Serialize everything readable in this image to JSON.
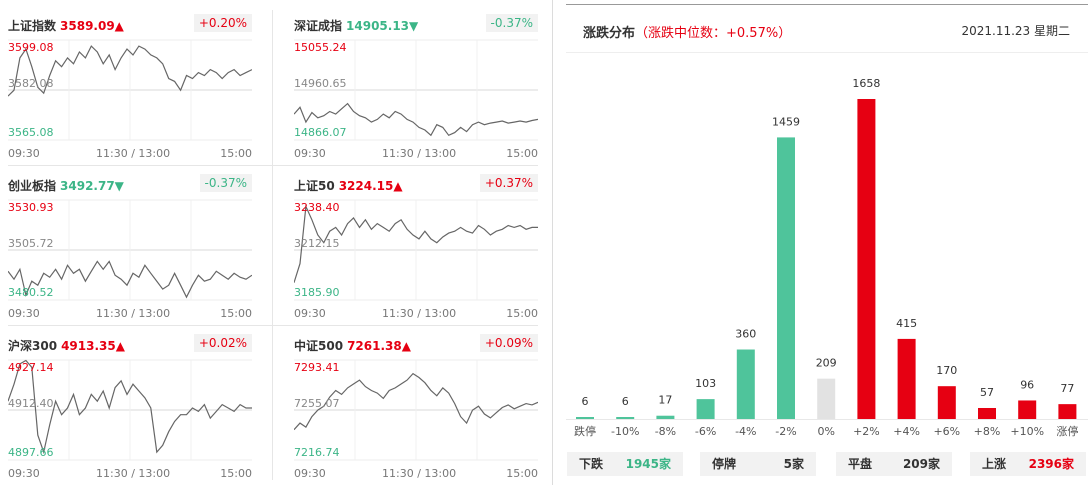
{
  "indices": [
    {
      "name": "上证指数",
      "value": "3589.09",
      "arrow": "▲",
      "change": "+0.20%",
      "trend": "up",
      "high": "3599.08",
      "mid": "3582.08",
      "low": "3565.08",
      "times": [
        "09:30",
        "11:30 / 13:00",
        "15:00"
      ],
      "prev_close": 3582.08,
      "chart_data": {
        "type": "line",
        "ylim": [
          3565.08,
          3599.08
        ],
        "values": [
          3580,
          3582,
          3593,
          3596,
          3590,
          3583,
          3581,
          3587,
          3592,
          3590,
          3593,
          3591,
          3595,
          3593,
          3597,
          3595,
          3591,
          3594,
          3589,
          3593,
          3596,
          3594,
          3597,
          3596,
          3594,
          3593,
          3591,
          3586,
          3585,
          3582,
          3587,
          3586,
          3588,
          3587,
          3589,
          3588,
          3586,
          3588,
          3589,
          3587,
          3588,
          3589
        ]
      }
    },
    {
      "name": "深证成指",
      "value": "14905.13",
      "arrow": "▼",
      "change": "-0.37%",
      "trend": "down",
      "high": "15055.24",
      "mid": "14960.65",
      "low": "14866.07",
      "times": [
        "09:30",
        "11:30 / 13:00",
        "15:00"
      ],
      "prev_close": 14960.65,
      "chart_data": {
        "type": "line",
        "ylim": [
          14866.07,
          15055.24
        ],
        "values": [
          14915,
          14928,
          14900,
          14918,
          14908,
          14912,
          14920,
          14915,
          14925,
          14935,
          14920,
          14912,
          14908,
          14900,
          14905,
          14915,
          14908,
          14920,
          14915,
          14905,
          14900,
          14890,
          14885,
          14875,
          14895,
          14890,
          14875,
          14880,
          14890,
          14882,
          14895,
          14900,
          14895,
          14898,
          14900,
          14902,
          14898,
          14900,
          14902,
          14900,
          14903,
          14905
        ]
      }
    },
    {
      "name": "创业板指",
      "value": "3492.77",
      "arrow": "▼",
      "change": "-0.37%",
      "trend": "down",
      "high": "3530.93",
      "mid": "3505.72",
      "low": "3480.52",
      "times": [
        "09:30",
        "11:30 / 13:00",
        "15:00"
      ],
      "prev_close": 3505.72,
      "chart_data": {
        "type": "line",
        "ylim": [
          3480.52,
          3530.93
        ],
        "values": [
          3495,
          3491,
          3496,
          3483,
          3490,
          3488,
          3494,
          3492,
          3496,
          3491,
          3498,
          3494,
          3496,
          3490,
          3495,
          3500,
          3496,
          3500,
          3493,
          3491,
          3488,
          3494,
          3492,
          3498,
          3494,
          3490,
          3486,
          3488,
          3494,
          3488,
          3482,
          3488,
          3493,
          3490,
          3491,
          3495,
          3493,
          3491,
          3494,
          3492,
          3491,
          3493
        ]
      }
    },
    {
      "name": "上证50",
      "value": "3224.15",
      "arrow": "▲",
      "change": "+0.37%",
      "trend": "up",
      "high": "3238.40",
      "mid": "3212.15",
      "low": "3185.90",
      "times": [
        "09:30",
        "11:30 / 13:00",
        "15:00"
      ],
      "prev_close": 3212.15,
      "chart_data": {
        "type": "line",
        "ylim": [
          3185.9,
          3238.4
        ],
        "values": [
          3195,
          3205,
          3235,
          3228,
          3220,
          3216,
          3222,
          3224,
          3220,
          3226,
          3229,
          3224,
          3228,
          3223,
          3226,
          3224,
          3222,
          3226,
          3228,
          3223,
          3220,
          3218,
          3222,
          3218,
          3216,
          3219,
          3221,
          3222,
          3224,
          3222,
          3221,
          3225,
          3223,
          3220,
          3222,
          3223,
          3225,
          3224,
          3225,
          3223,
          3224,
          3224
        ]
      }
    },
    {
      "name": "沪深300",
      "value": "4913.35",
      "arrow": "▲",
      "change": "+0.02%",
      "trend": "up",
      "high": "4927.14",
      "mid": "4912.40",
      "low": "4897.66",
      "times": [
        "09:30",
        "11:30 / 13:00",
        "15:00"
      ],
      "prev_close": 4912.4,
      "chart_data": {
        "type": "line",
        "ylim": [
          4897.66,
          4927.14
        ],
        "values": [
          4915,
          4920,
          4926,
          4927,
          4925,
          4905,
          4900,
          4908,
          4915,
          4911,
          4913,
          4917,
          4911,
          4913,
          4917,
          4915,
          4918,
          4913,
          4919,
          4921,
          4917,
          4920,
          4918,
          4916,
          4913,
          4900,
          4902,
          4906,
          4909,
          4911,
          4911,
          4913,
          4912,
          4914,
          4910,
          4912,
          4914,
          4913,
          4912,
          4914,
          4913,
          4913
        ]
      }
    },
    {
      "name": "中证500",
      "value": "7261.38",
      "arrow": "▲",
      "change": "+0.09%",
      "trend": "up",
      "high": "7293.41",
      "mid": "7255.07",
      "low": "7216.74",
      "times": [
        "09:30",
        "11:30 / 13:00",
        "15:00"
      ],
      "prev_close": 7255.07,
      "chart_data": {
        "type": "line",
        "ylim": [
          7216.74,
          7293.41
        ],
        "values": [
          7240,
          7245,
          7242,
          7250,
          7255,
          7258,
          7265,
          7270,
          7267,
          7272,
          7275,
          7278,
          7273,
          7270,
          7268,
          7264,
          7270,
          7272,
          7275,
          7278,
          7283,
          7280,
          7276,
          7270,
          7266,
          7272,
          7268,
          7260,
          7250,
          7245,
          7255,
          7258,
          7252,
          7249,
          7253,
          7257,
          7259,
          7256,
          7258,
          7260,
          7259,
          7261
        ]
      }
    }
  ],
  "distribution": {
    "title": "涨跌分布",
    "subtitle": "（涨跌中位数：+0.57%）",
    "date": "2021.11.23 星期二",
    "colors": {
      "down": "#4fc49b",
      "flat": "#e2e2e2",
      "up": "#e60012"
    },
    "chart_data": {
      "type": "bar",
      "categories": [
        "跌停",
        "-10%",
        "-8%",
        "-6%",
        "-4%",
        "-2%",
        "0%",
        "+2%",
        "+4%",
        "+6%",
        "+8%",
        "+10%",
        "涨停"
      ],
      "values": [
        6,
        6,
        17,
        103,
        360,
        1459,
        209,
        1658,
        415,
        170,
        57,
        96,
        77
      ],
      "kinds": [
        "down",
        "down",
        "down",
        "down",
        "down",
        "down",
        "flat",
        "up",
        "up",
        "up",
        "up",
        "up",
        "up"
      ]
    },
    "summary": [
      {
        "label": "下跌",
        "value": "1945家",
        "kind": "down"
      },
      {
        "label": "停牌",
        "value": "5家",
        "kind": "neutral"
      },
      {
        "label": "平盘",
        "value": "209家",
        "kind": "neutral"
      },
      {
        "label": "上涨",
        "value": "2396家",
        "kind": "up"
      }
    ]
  }
}
